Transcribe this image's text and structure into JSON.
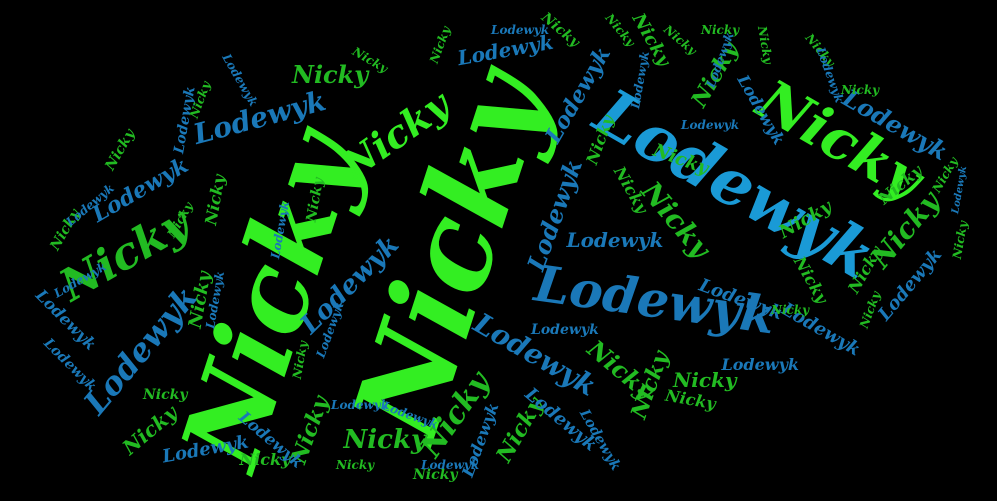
{
  "words": {
    "nicky": "Nicky",
    "lodewyk": "Lodewyk"
  },
  "colors": {
    "background": "#000000",
    "bright_green": "#33ee22",
    "mid_green": "#22bb22",
    "dark_green": "#1f8f2a",
    "bright_blue": "#1a9ad6",
    "mid_blue": "#1a78b8",
    "dark_blue": "#15608f"
  }
}
